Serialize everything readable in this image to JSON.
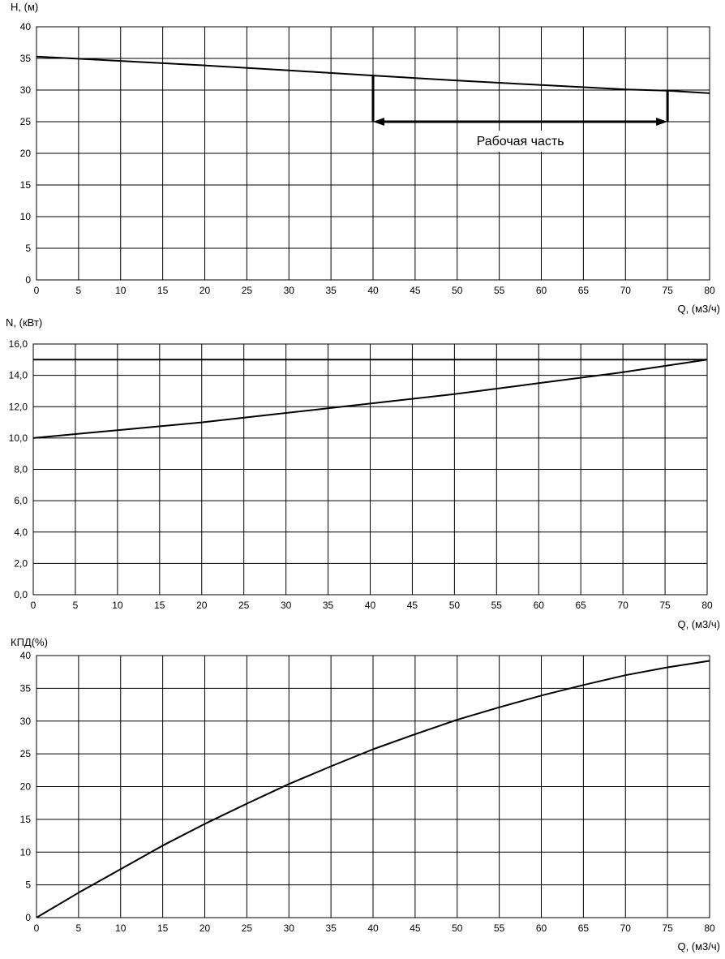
{
  "colors": {
    "background": "#ffffff",
    "grid": "#000000",
    "line": "#000000"
  },
  "chart_data": [
    {
      "type": "line",
      "ylabel": "H, (м)",
      "xlabel": "Q, (м3/ч)",
      "xlim": [
        0,
        80
      ],
      "ylim": [
        0,
        40
      ],
      "x_ticks": [
        "0",
        "5",
        "10",
        "15",
        "20",
        "25",
        "30",
        "35",
        "40",
        "45",
        "50",
        "55",
        "60",
        "65",
        "70",
        "75",
        "80"
      ],
      "y_ticks": [
        "0",
        "5",
        "10",
        "15",
        "20",
        "25",
        "30",
        "35",
        "40"
      ],
      "grid": true,
      "series": [
        {
          "x": [
            0,
            10,
            20,
            30,
            40,
            50,
            60,
            70,
            75,
            80
          ],
          "y": [
            35.3,
            34.6,
            33.9,
            33.1,
            32.3,
            31.5,
            30.8,
            30.1,
            29.9,
            29.5
          ]
        }
      ],
      "annotations": [
        {
          "text": "Рабочая часть",
          "x_from": 40,
          "x_to": 75,
          "y": 25
        }
      ]
    },
    {
      "type": "line",
      "ylabel": "N, (кВт)",
      "xlabel": "Q, (м3/ч)",
      "xlim": [
        0,
        80
      ],
      "ylim": [
        0,
        16
      ],
      "x_ticks": [
        "0",
        "5",
        "10",
        "15",
        "20",
        "25",
        "30",
        "35",
        "40",
        "45",
        "50",
        "55",
        "60",
        "65",
        "70",
        "75",
        "80"
      ],
      "y_ticks": [
        "0,0",
        "2,0",
        "4,0",
        "6,0",
        "8,0",
        "10,0",
        "12,0",
        "14,0",
        "16,0"
      ],
      "grid": true,
      "series": [
        {
          "x": [
            0,
            80
          ],
          "y": [
            15.0,
            15.0
          ]
        },
        {
          "x": [
            0,
            10,
            20,
            30,
            40,
            50,
            60,
            70,
            80
          ],
          "y": [
            10.0,
            10.5,
            11.0,
            11.6,
            12.2,
            12.8,
            13.5,
            14.2,
            15.0
          ]
        }
      ]
    },
    {
      "type": "line",
      "ylabel": "КПД(%)",
      "xlabel": "Q, (м3/ч)",
      "xlim": [
        0,
        80
      ],
      "ylim": [
        0,
        40
      ],
      "x_ticks": [
        "0",
        "5",
        "10",
        "15",
        "20",
        "25",
        "30",
        "35",
        "40",
        "45",
        "50",
        "55",
        "60",
        "65",
        "70",
        "75",
        "80"
      ],
      "y_ticks": [
        "0",
        "5",
        "10",
        "15",
        "20",
        "25",
        "30",
        "35",
        "40"
      ],
      "grid": true,
      "series": [
        {
          "x": [
            0,
            5,
            10,
            15,
            20,
            25,
            30,
            35,
            40,
            45,
            50,
            55,
            60,
            65,
            70,
            75,
            80
          ],
          "y": [
            0,
            3.8,
            7.4,
            11.0,
            14.3,
            17.4,
            20.4,
            23.1,
            25.7,
            28.0,
            30.2,
            32.1,
            33.9,
            35.5,
            37.0,
            38.2,
            39.2
          ]
        }
      ]
    }
  ]
}
